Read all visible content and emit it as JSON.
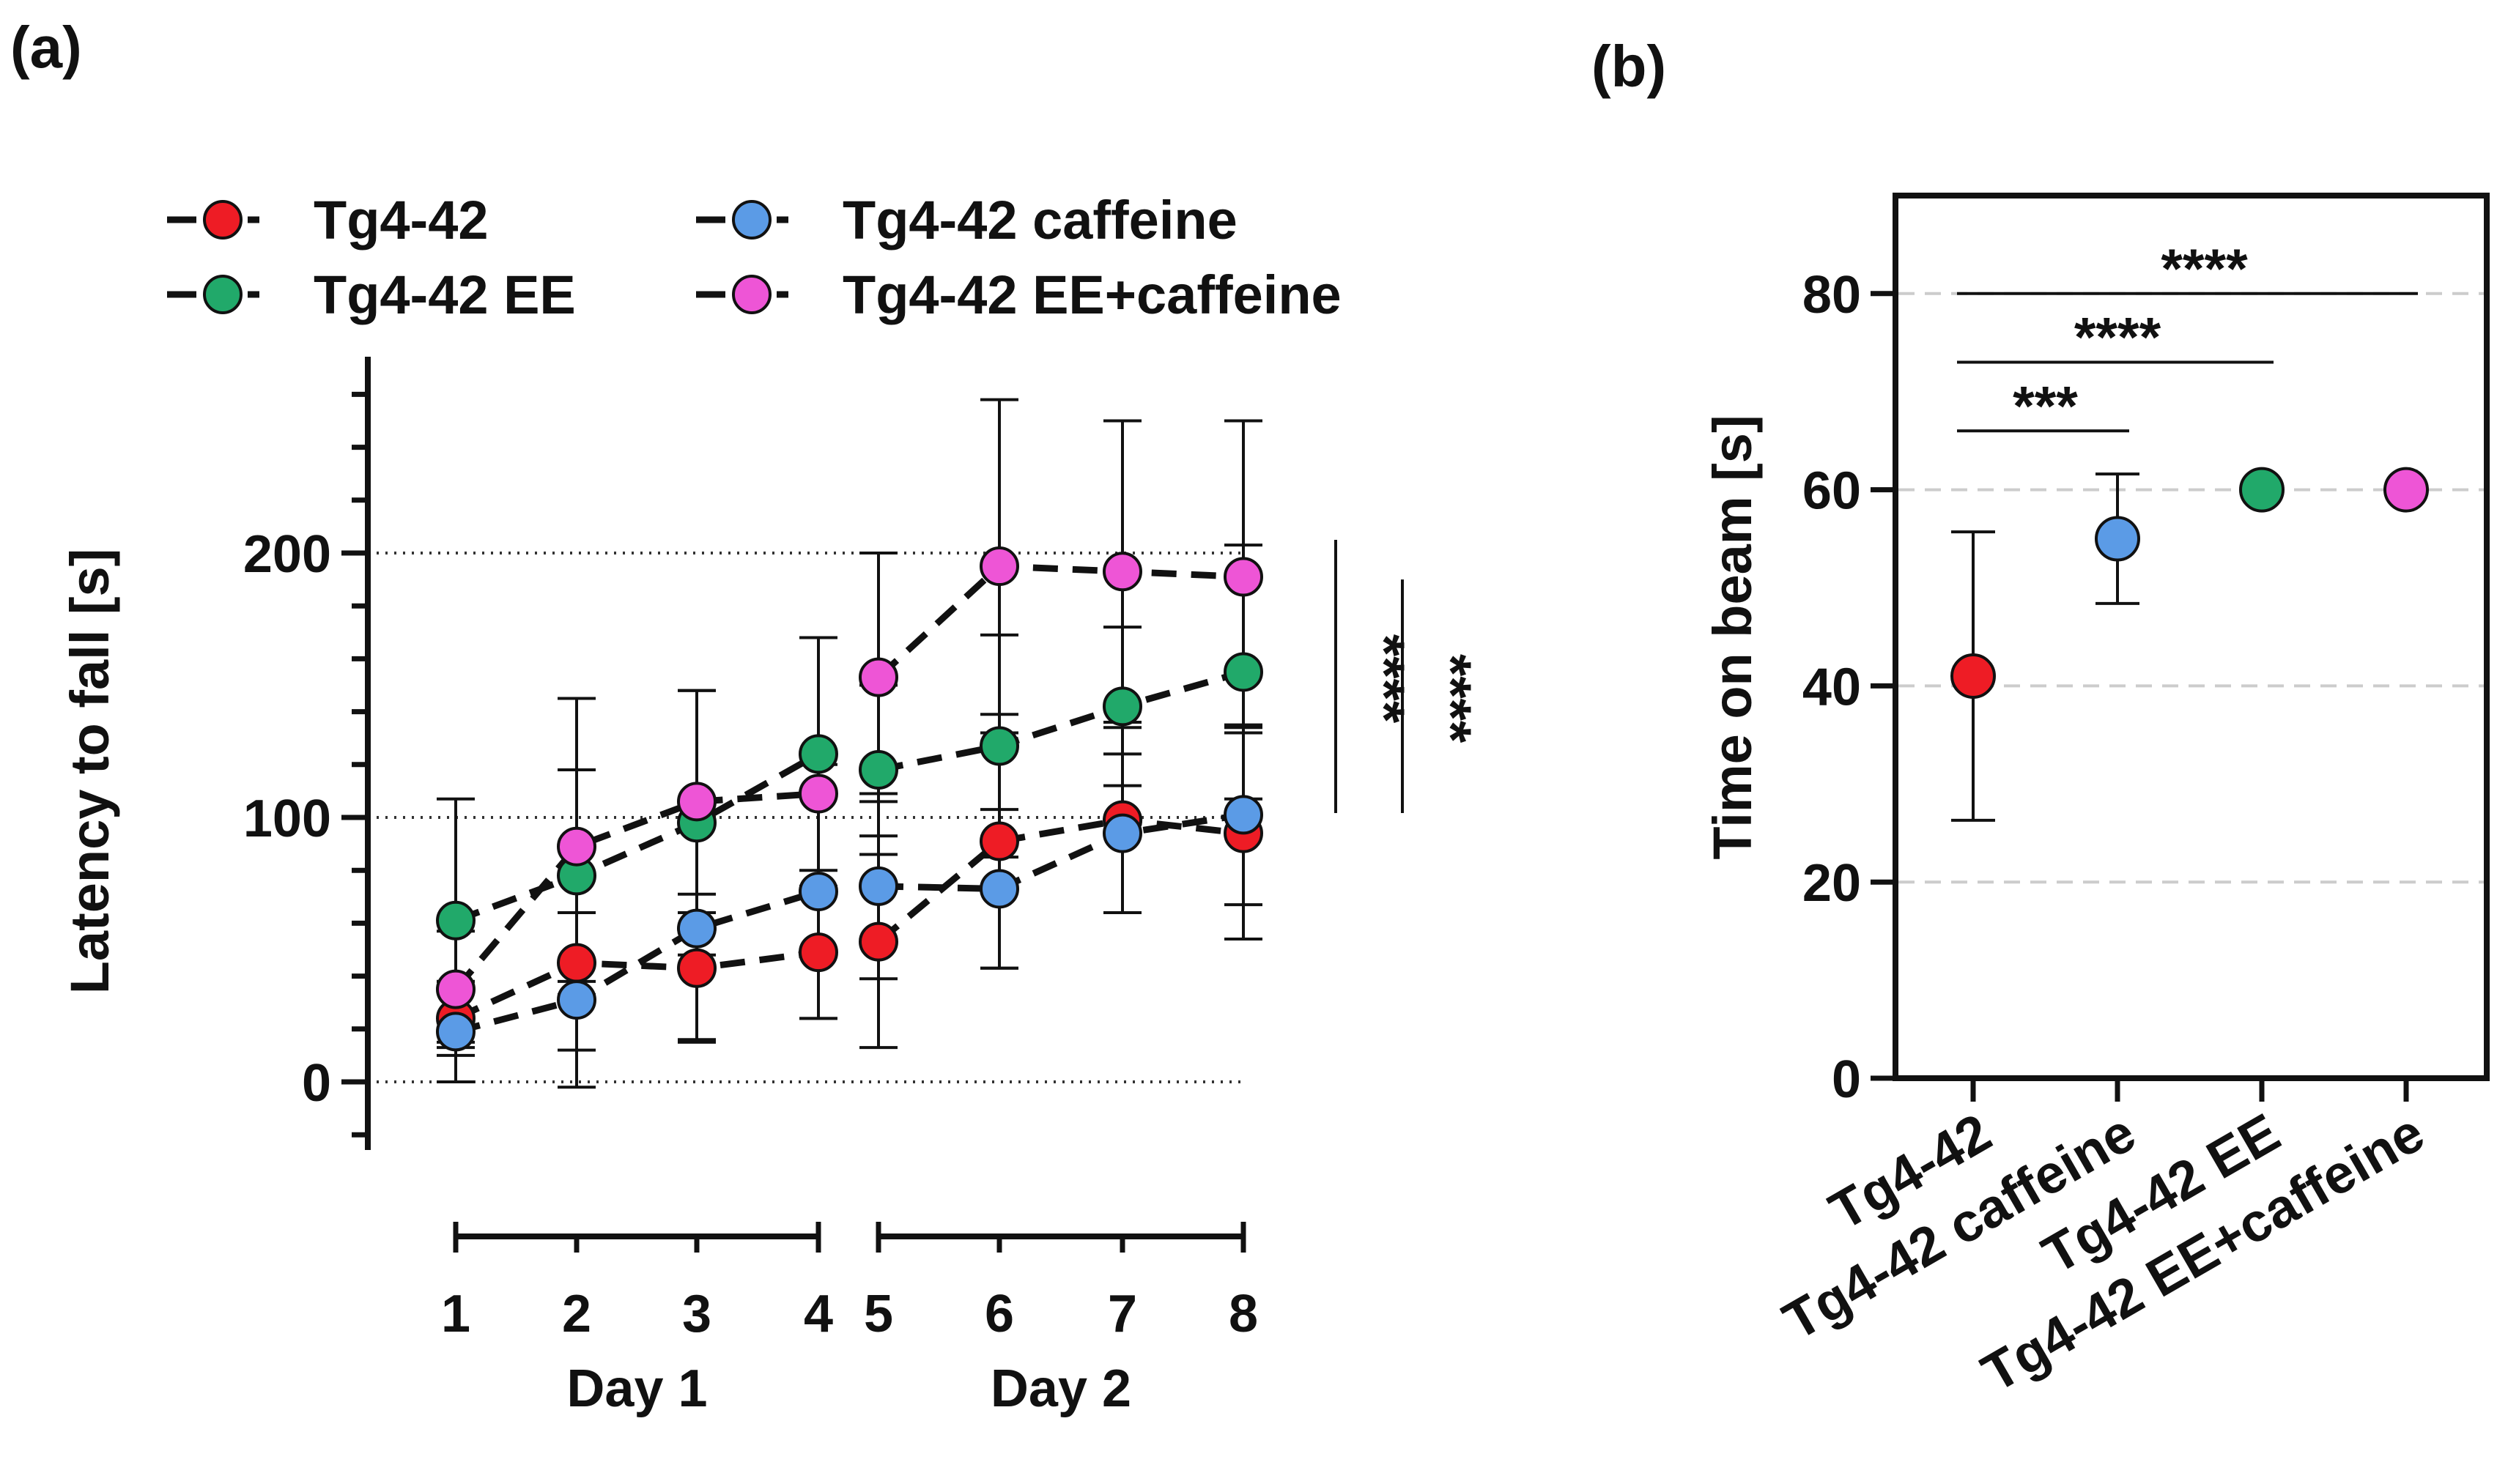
{
  "colors": {
    "tg442": "#ee1c25",
    "tg442_caffeine": "#5b9be6",
    "tg442_ee": "#21a96a",
    "tg442_ee_caffeine": "#ee55d6",
    "axis": "#111111"
  },
  "chart_data": [
    {
      "panel_label": "(a)",
      "type": "line",
      "ylabel": "Latency to fall [s]",
      "ylim": [
        -25,
        270
      ],
      "yticks": [
        "0",
        "100",
        "200"
      ],
      "x": [
        1,
        2,
        3,
        4,
        5,
        6,
        7,
        8
      ],
      "xtick_labels": [
        "1",
        "2",
        "3",
        "4",
        "5",
        "6",
        "7",
        "8"
      ],
      "day_groups": [
        {
          "label": "Day 1",
          "trials": [
            1,
            4
          ]
        },
        {
          "label": "Day 2",
          "trials": [
            5,
            8
          ]
        }
      ],
      "reference_lines": [
        0,
        100,
        200
      ],
      "series": [
        {
          "name": "Tg4-42",
          "color_key": "tg442",
          "values": [
            24,
            45,
            43,
            49,
            53,
            91,
            99,
            94
          ],
          "err": [
            14,
            33,
            28,
            25,
            40,
            48,
            35,
            40
          ]
        },
        {
          "name": "Tg4-42 caffeine",
          "color_key": "tg442_caffeine",
          "values": [
            19,
            31,
            58,
            72,
            74,
            73,
            94,
            101
          ],
          "err": [
            19,
            33,
            42,
            48,
            35,
            30,
            30,
            34
          ]
        },
        {
          "name": "Tg4-42 EE",
          "color_key": "tg442_ee",
          "values": [
            61,
            78,
            98,
            124,
            118,
            127,
            142,
            155
          ],
          "err": [
            46,
            40,
            50,
            44,
            32,
            42,
            30,
            48
          ]
        },
        {
          "name": "Tg4-42 EE+caffeine",
          "color_key": "tg442_ee_caffeine",
          "values": [
            35,
            89,
            106,
            109,
            153,
            195,
            193,
            191
          ],
          "err": [
            22,
            56,
            42,
            59,
            47,
            63,
            57,
            59
          ]
        }
      ],
      "legend": {
        "placement": "top",
        "order": [
          "Tg4-42",
          "Tg4-42 caffeine",
          "Tg4-42 EE",
          "Tg4-42 EE+caffeine"
        ]
      },
      "annotations": [
        {
          "text": "****",
          "span": [
            100,
            205
          ]
        },
        {
          "text": "****",
          "span": [
            100,
            190
          ]
        }
      ]
    },
    {
      "panel_label": "(b)",
      "type": "scatter",
      "ylabel": "Time on beam [s]",
      "ylim": [
        0,
        90
      ],
      "yticks": [
        "0",
        "20",
        "40",
        "60",
        "80"
      ],
      "categories": [
        "Tg4-42",
        "Tg4-42 caffeine",
        "Tg4-42 EE",
        "Tg4-42 EE+caffeine"
      ],
      "category_color_keys": [
        "tg442",
        "tg442_caffeine",
        "tg442_ee",
        "tg442_ee_caffeine"
      ],
      "values": [
        41,
        55,
        60,
        60
      ],
      "err": [
        14.7,
        6.6,
        0,
        0
      ],
      "grid": true,
      "significance": [
        {
          "text": "***",
          "from": 0,
          "to": 1,
          "y": 66
        },
        {
          "text": "****",
          "from": 0,
          "to": 2,
          "y": 73
        },
        {
          "text": "****",
          "from": 0,
          "to": 3,
          "y": 80
        }
      ]
    }
  ]
}
